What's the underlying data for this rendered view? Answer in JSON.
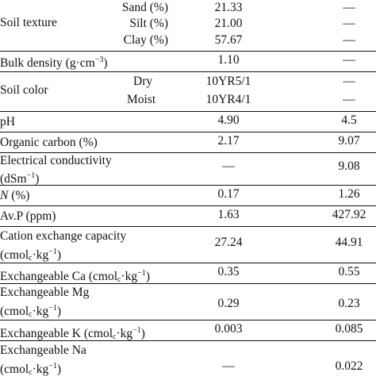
{
  "rows": {
    "soil_texture": {
      "label": "Soil texture",
      "sand": {
        "label": "Sand (%)",
        "v1": "21.33",
        "v2": "—"
      },
      "silt": {
        "label": "Silt (%)",
        "v1": "21.00",
        "v2": "—"
      },
      "clay": {
        "label": "Clay (%)",
        "v1": "57.67",
        "v2": "—"
      }
    },
    "bulk_density": {
      "label": "Bulk density (g·cm",
      "sup": "−3",
      "tail": ")",
      "v1": "1.10",
      "v2": "—"
    },
    "soil_color": {
      "label": "Soil color",
      "dry": {
        "label": "Dry",
        "v1": "10YR5/1",
        "v2": "—"
      },
      "moist": {
        "label": "Moist",
        "v1": "10YR4/1",
        "v2": "—"
      }
    },
    "ph": {
      "label": "pH",
      "v1": "4.90",
      "v2": "4.5"
    },
    "organic_carbon": {
      "label": "Organic carbon (%)",
      "v1": "2.17",
      "v2": "9.07"
    },
    "ec": {
      "line1": "Electrical conductivity",
      "line2a": "(dSm",
      "sup": "−1",
      "line2b": ")",
      "v1": "—",
      "v2": "9.08"
    },
    "nitrogen": {
      "italic": "N",
      "label": " (%)",
      "v1": "0.17",
      "v2": "1.26"
    },
    "avp": {
      "label": "Av.P (ppm)",
      "v1": "1.63",
      "v2": "427.92"
    },
    "cec": {
      "line1": "Cation exchange capacity",
      "a": "(cmol",
      "sub": "c",
      "b": "·kg",
      "sup": "−1",
      "c": ")",
      "v1": "27.24",
      "v2": "44.91"
    },
    "ex_ca": {
      "a": "Exchangeable Ca (cmol",
      "sub": "c",
      "b": "·kg",
      "sup": "−1",
      "c": ")",
      "v1": "0.35",
      "v2": "0.55"
    },
    "ex_mg": {
      "line1": "Exchangeable Mg",
      "a": "(cmol",
      "sub": "c",
      "b": "·kg",
      "sup": "−1",
      "c": ")",
      "v1": "0.29",
      "v2": "0.23"
    },
    "ex_k": {
      "a": "Exchangeable K (cmol",
      "sub": "c",
      "b": "·kg",
      "sup": "−1",
      "c": ")",
      "v1": "0.003",
      "v2": "0.085"
    },
    "ex_na": {
      "line1": "Exchangeable Na",
      "a": "(cmol",
      "sub": "c",
      "b": "·kg",
      "sup": "−1",
      "c": ")",
      "v1": "—",
      "v2": "0.022"
    }
  }
}
